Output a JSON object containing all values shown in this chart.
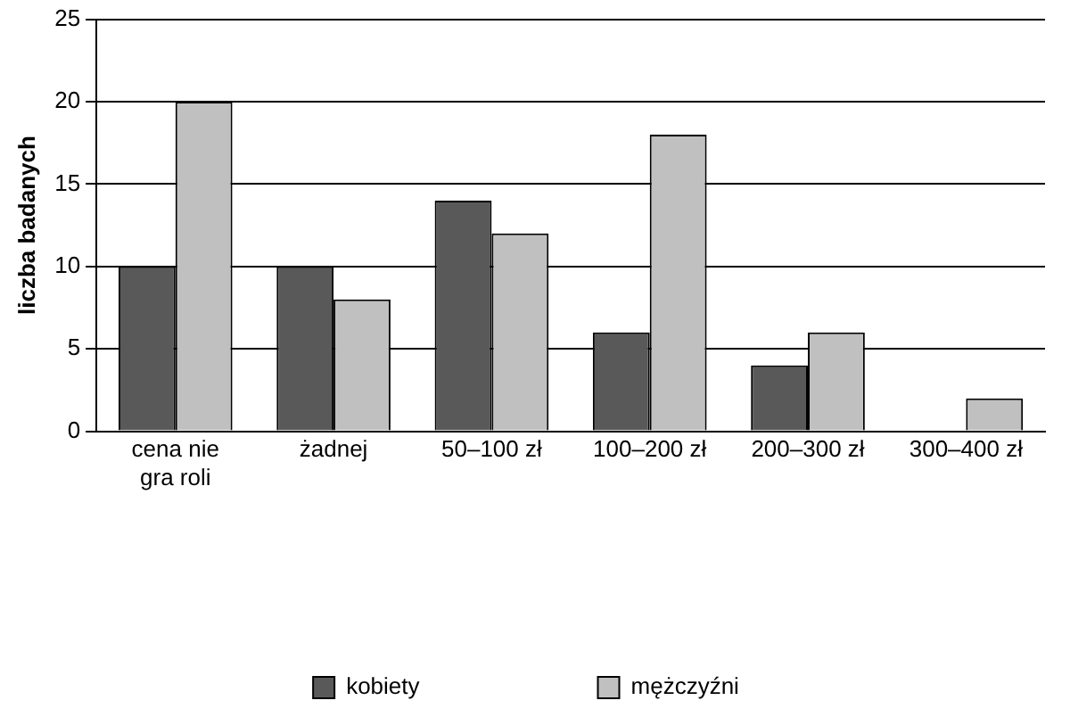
{
  "chart_data": {
    "type": "bar",
    "ylabel": "liczba badanych",
    "categories": [
      "cena nie gra roli",
      "żadnej",
      "50–100 zł",
      "100–200 zł",
      "200–300 zł",
      "300–400 zł"
    ],
    "series": [
      {
        "name": "kobiety",
        "color": "#595959",
        "values": [
          10,
          10,
          14,
          6,
          4,
          0
        ]
      },
      {
        "name": "mężczyźni",
        "color": "#c0c0c0",
        "values": [
          20,
          8,
          12,
          18,
          6,
          2
        ]
      }
    ],
    "ylim": [
      0,
      25
    ],
    "yticks": [
      0,
      5,
      10,
      15,
      20,
      25
    ],
    "grid": "y",
    "legend": "bottom"
  }
}
